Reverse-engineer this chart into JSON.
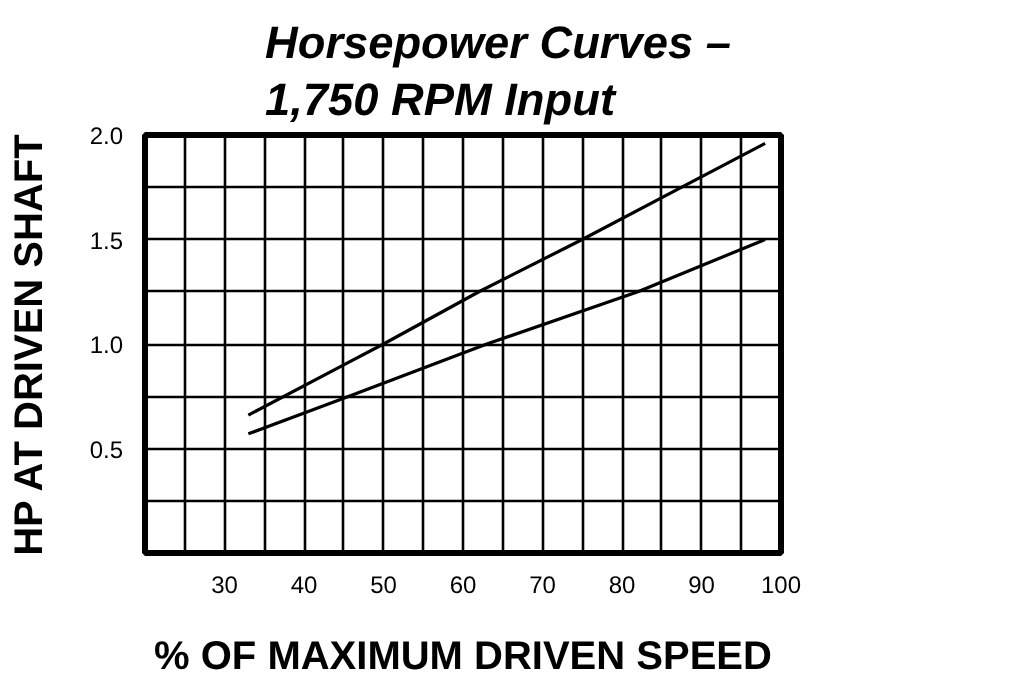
{
  "chart_data": {
    "type": "line",
    "title": "Horsepower Curves – 1,750 RPM Input",
    "xlabel": "% OF MAXIMUM DRIVEN SPEED",
    "ylabel": "HP AT DRIVEN SHAFT",
    "xlim": [
      20,
      100
    ],
    "ylim": [
      0,
      2
    ],
    "xticks": [
      {
        "value": 25,
        "label": null
      },
      30,
      {
        "value": 35,
        "label": null
      },
      40,
      {
        "value": 45,
        "label": null
      },
      50,
      {
        "value": 55,
        "label": null
      },
      60,
      {
        "value": 65,
        "label": null
      },
      70,
      {
        "value": 75,
        "label": null
      },
      80,
      {
        "value": 85,
        "label": null
      },
      90,
      {
        "value": 95,
        "label": null
      },
      100
    ],
    "yticks": [
      {
        "value": 0.25,
        "label": null
      },
      0.5,
      {
        "value": 0.75,
        "label": null
      },
      "1.0",
      {
        "value": 1.25,
        "label": null
      },
      1.5,
      {
        "value": 1.75,
        "label": null
      },
      "2.0"
    ],
    "grid": true,
    "marker": "none",
    "line_style": "solid",
    "series": [
      {
        "color": "#000000",
        "x": [
          33,
          45,
          50,
          62,
          75,
          88,
          98
        ],
        "values": [
          0.66,
          0.9,
          1.0,
          1.25,
          1.5,
          1.76,
          1.96
        ]
      },
      {
        "color": "#000000",
        "x": [
          33,
          45,
          63,
          82,
          98
        ],
        "values": [
          0.57,
          0.74,
          1.0,
          1.25,
          1.5
        ]
      }
    ]
  }
}
